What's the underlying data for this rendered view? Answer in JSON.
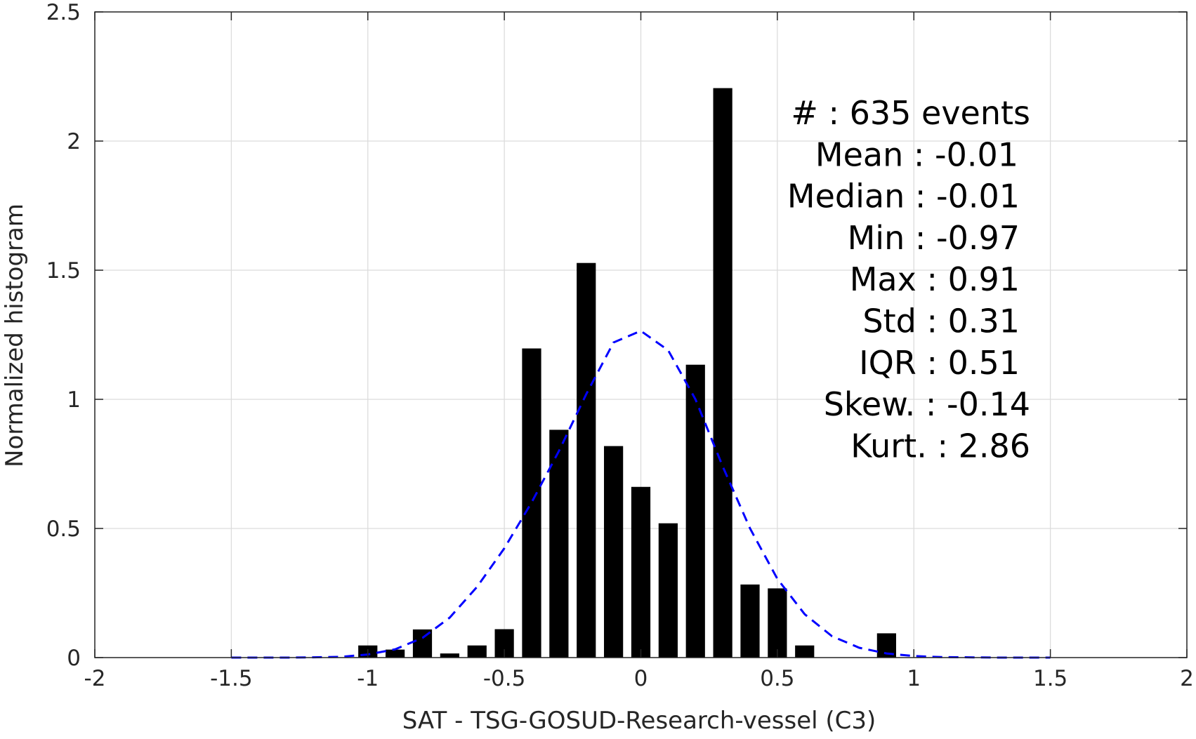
{
  "chart_data": {
    "type": "bar",
    "xlabel": "SAT - TSG-GOSUD-Research-vessel (C3)",
    "ylabel": "Normalized histogram",
    "xlim": [
      -2,
      2
    ],
    "ylim": [
      0,
      2.5
    ],
    "grid": true,
    "x_ticks": [
      "-2",
      "-1.5",
      "-1",
      "-0.5",
      "0",
      "0.5",
      "1",
      "1.5",
      "2"
    ],
    "y_ticks": [
      "0",
      "0.5",
      "1",
      "1.5",
      "2",
      "2.5"
    ],
    "bar_width": 0.07,
    "bar_color": "#000000",
    "bars": [
      {
        "x": -1.0,
        "y": 0.047
      },
      {
        "x": -0.9,
        "y": 0.031
      },
      {
        "x": -0.8,
        "y": 0.109
      },
      {
        "x": -0.7,
        "y": 0.016
      },
      {
        "x": -0.6,
        "y": 0.047
      },
      {
        "x": -0.5,
        "y": 0.11
      },
      {
        "x": -0.4,
        "y": 1.197
      },
      {
        "x": -0.3,
        "y": 0.882
      },
      {
        "x": -0.2,
        "y": 1.528
      },
      {
        "x": -0.1,
        "y": 0.819
      },
      {
        "x": 0.0,
        "y": 0.661
      },
      {
        "x": 0.1,
        "y": 0.52
      },
      {
        "x": 0.2,
        "y": 1.134
      },
      {
        "x": 0.3,
        "y": 2.205
      },
      {
        "x": 0.4,
        "y": 0.283
      },
      {
        "x": 0.5,
        "y": 0.268
      },
      {
        "x": 0.6,
        "y": 0.047
      },
      {
        "x": 0.9,
        "y": 0.094
      }
    ],
    "fit_curve": {
      "style": "dashed",
      "color": "#0000ff",
      "x": [
        -1.5,
        -1.4,
        -1.3,
        -1.2,
        -1.1,
        -1.0,
        -0.9,
        -0.8,
        -0.7,
        -0.6,
        -0.5,
        -0.4,
        -0.3,
        -0.2,
        -0.1,
        0.0,
        0.1,
        0.2,
        0.3,
        0.4,
        0.5,
        0.6,
        0.7,
        0.8,
        0.9,
        1.0,
        1.1,
        1.2,
        1.3,
        1.4,
        1.5
      ],
      "y": [
        0.0,
        0.0,
        0.0,
        0.001,
        0.003,
        0.012,
        0.032,
        0.076,
        0.155,
        0.274,
        0.423,
        0.601,
        0.8,
        1.02,
        1.22,
        1.265,
        1.19,
        1.0,
        0.74,
        0.5,
        0.305,
        0.168,
        0.083,
        0.038,
        0.016,
        0.006,
        0.002,
        0.001,
        0.0,
        0.0,
        0.0
      ]
    },
    "annotations": [
      "#  : 635 events",
      "Mean : -0.01",
      "Median : -0.01",
      "Min : -0.97",
      "Max : 0.91",
      "Std : 0.31",
      "IQR : 0.51",
      "Skew. : -0.14",
      "Kurt. : 2.86"
    ]
  }
}
